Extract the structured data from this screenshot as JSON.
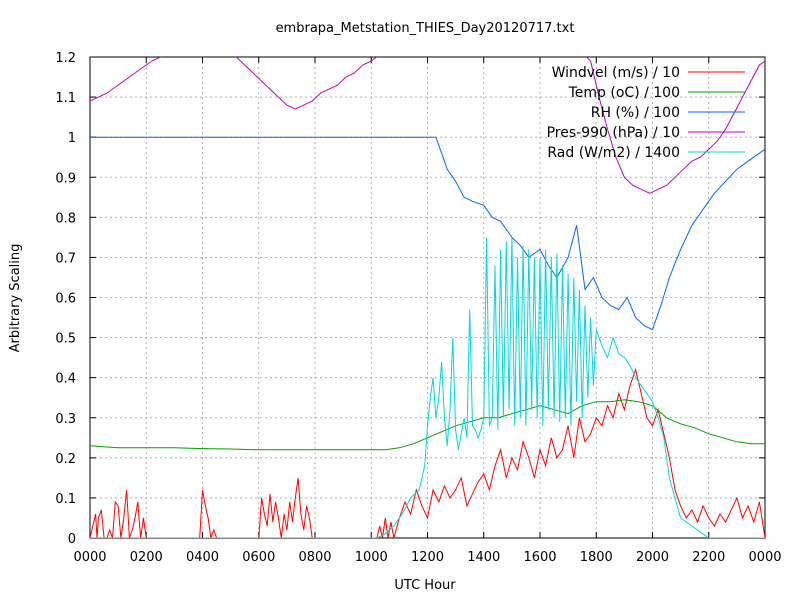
{
  "chart_data": {
    "type": "line",
    "title": "embrapa_Metstation_THIES_Day20120717.txt",
    "xlabel": "UTC Hour",
    "ylabel": "Arbitrary Scaling",
    "xlim": [
      0,
      24
    ],
    "ylim": [
      0,
      1.2
    ],
    "x_ticks": [
      {
        "value": 0,
        "label": "0000"
      },
      {
        "value": 2,
        "label": "0200"
      },
      {
        "value": 4,
        "label": "0400"
      },
      {
        "value": 6,
        "label": "0600"
      },
      {
        "value": 8,
        "label": "0800"
      },
      {
        "value": 10,
        "label": "1000"
      },
      {
        "value": 12,
        "label": "1200"
      },
      {
        "value": 14,
        "label": "1400"
      },
      {
        "value": 16,
        "label": "1600"
      },
      {
        "value": 18,
        "label": "1800"
      },
      {
        "value": 20,
        "label": "2000"
      },
      {
        "value": 22,
        "label": "2200"
      },
      {
        "value": 24,
        "label": "0000"
      }
    ],
    "y_ticks": [
      {
        "value": 0,
        "label": "0"
      },
      {
        "value": 0.1,
        "label": "0.1"
      },
      {
        "value": 0.2,
        "label": "0.2"
      },
      {
        "value": 0.3,
        "label": "0.3"
      },
      {
        "value": 0.4,
        "label": "0.4"
      },
      {
        "value": 0.5,
        "label": "0.5"
      },
      {
        "value": 0.6,
        "label": "0.6"
      },
      {
        "value": 0.7,
        "label": "0.7"
      },
      {
        "value": 0.8,
        "label": "0.8"
      },
      {
        "value": 0.9,
        "label": "0.9"
      },
      {
        "value": 1.0,
        "label": "1"
      },
      {
        "value": 1.1,
        "label": "1.1"
      },
      {
        "value": 1.2,
        "label": "1.2"
      }
    ],
    "grid": true,
    "legend_position": "top-right",
    "series": [
      {
        "name": "Windvel (m/s) / 10",
        "color": "#ff0000",
        "x": [
          0,
          0.2,
          0.25,
          0.3,
          0.4,
          0.5,
          0.6,
          0.7,
          0.8,
          0.9,
          1.0,
          1.1,
          1.2,
          1.3,
          1.4,
          1.5,
          1.6,
          1.7,
          1.8,
          1.9,
          2.0,
          2.5,
          3.0,
          3.5,
          3.9,
          4.0,
          4.1,
          4.2,
          4.3,
          4.4,
          4.5,
          5.0,
          5.5,
          6.0,
          6.1,
          6.2,
          6.3,
          6.4,
          6.5,
          6.6,
          6.7,
          6.8,
          6.9,
          7.0,
          7.1,
          7.2,
          7.3,
          7.4,
          7.5,
          7.6,
          7.7,
          7.8,
          7.9,
          8.0,
          8.1,
          8.2,
          8.3,
          8.5,
          9.0,
          9.5,
          10.0,
          10.2,
          10.3,
          10.4,
          10.5,
          10.6,
          10.7,
          10.8,
          11.0,
          11.2,
          11.4,
          11.6,
          11.8,
          12.0,
          12.2,
          12.4,
          12.6,
          12.8,
          13.0,
          13.2,
          13.4,
          13.6,
          13.8,
          14.0,
          14.2,
          14.4,
          14.6,
          14.8,
          15.0,
          15.2,
          15.4,
          15.6,
          15.8,
          16.0,
          16.2,
          16.4,
          16.6,
          16.8,
          17.0,
          17.2,
          17.4,
          17.6,
          17.8,
          18.0,
          18.2,
          18.4,
          18.6,
          18.8,
          19.0,
          19.2,
          19.4,
          19.6,
          19.8,
          20.0,
          20.2,
          20.4,
          20.6,
          20.8,
          21.0,
          21.2,
          21.4,
          21.6,
          21.8,
          22.0,
          22.2,
          22.4,
          22.6,
          22.8,
          23.0,
          23.2,
          23.4,
          23.6,
          23.8,
          24.0
        ],
        "y": [
          0,
          0.06,
          0,
          0.05,
          0.07,
          0,
          0,
          0.02,
          0,
          0.09,
          0.08,
          0,
          0.05,
          0.12,
          0,
          0.02,
          0.05,
          0.09,
          0,
          0.05,
          0,
          0,
          0,
          0,
          0,
          0.12,
          0.08,
          0.05,
          0,
          0.02,
          0,
          0,
          0,
          0,
          0.1,
          0.06,
          0.03,
          0.11,
          0.04,
          0.09,
          0.05,
          0,
          0.06,
          0.02,
          0.09,
          0.04,
          0.1,
          0.15,
          0.06,
          0.02,
          0.08,
          0.05,
          0,
          0,
          0,
          0,
          0,
          0,
          0,
          0,
          0,
          0,
          0.03,
          0,
          0.05,
          0,
          0.04,
          0,
          0.05,
          0.09,
          0.06,
          0.12,
          0.08,
          0.05,
          0.12,
          0.09,
          0.13,
          0.1,
          0.12,
          0.15,
          0.08,
          0.11,
          0.14,
          0.16,
          0.12,
          0.18,
          0.22,
          0.15,
          0.2,
          0.17,
          0.24,
          0.2,
          0.15,
          0.22,
          0.18,
          0.25,
          0.2,
          0.22,
          0.28,
          0.2,
          0.3,
          0.24,
          0.26,
          0.3,
          0.28,
          0.33,
          0.3,
          0.36,
          0.32,
          0.38,
          0.42,
          0.36,
          0.3,
          0.28,
          0.32,
          0.26,
          0.2,
          0.12,
          0.08,
          0.05,
          0.07,
          0.04,
          0.08,
          0.05,
          0.03,
          0.06,
          0.04,
          0.07,
          0.1,
          0.05,
          0.08,
          0.04,
          0.09,
          0
        ]
      },
      {
        "name": "Temp (oC) / 100",
        "color": "#00a000",
        "x": [
          0,
          1,
          2,
          3,
          4,
          5,
          6,
          7,
          8,
          9,
          10,
          10.5,
          11,
          11.5,
          12,
          12.5,
          13,
          13.5,
          14,
          14.5,
          15,
          15.5,
          16,
          16.5,
          17,
          17.5,
          18,
          18.5,
          19,
          19.5,
          20,
          20.5,
          21,
          21.5,
          22,
          22.5,
          23,
          23.5,
          24
        ],
        "y": [
          0.23,
          0.225,
          0.225,
          0.225,
          0.223,
          0.222,
          0.22,
          0.22,
          0.22,
          0.22,
          0.22,
          0.22,
          0.225,
          0.235,
          0.25,
          0.265,
          0.28,
          0.29,
          0.3,
          0.3,
          0.31,
          0.32,
          0.33,
          0.32,
          0.31,
          0.33,
          0.34,
          0.34,
          0.345,
          0.34,
          0.33,
          0.3,
          0.285,
          0.275,
          0.26,
          0.25,
          0.24,
          0.235,
          0.235
        ]
      },
      {
        "name": "RH (%) / 100",
        "color": "#0066ff",
        "x": [
          0,
          2,
          4,
          6,
          8,
          10,
          12,
          12.3,
          12.5,
          12.7,
          13.0,
          13.3,
          13.6,
          14.0,
          14.3,
          14.6,
          15.0,
          15.3,
          15.6,
          16.0,
          16.3,
          16.6,
          17.0,
          17.3,
          17.6,
          17.9,
          18.2,
          18.5,
          18.8,
          19.1,
          19.4,
          19.7,
          20.0,
          20.3,
          20.6,
          21.0,
          21.4,
          21.8,
          22.2,
          22.6,
          23.0,
          23.4,
          23.8,
          24.0
        ],
        "y": [
          1.0,
          1.0,
          1.0,
          1.0,
          1.0,
          1.0,
          1.0,
          1.0,
          0.96,
          0.92,
          0.89,
          0.85,
          0.84,
          0.83,
          0.8,
          0.79,
          0.75,
          0.73,
          0.7,
          0.72,
          0.68,
          0.65,
          0.7,
          0.78,
          0.62,
          0.65,
          0.6,
          0.58,
          0.57,
          0.6,
          0.55,
          0.53,
          0.52,
          0.58,
          0.65,
          0.72,
          0.78,
          0.82,
          0.86,
          0.89,
          0.92,
          0.94,
          0.96,
          0.97
        ]
      },
      {
        "name": "Pres-990 (hPa) / 10",
        "color": "#c000c0",
        "x": [
          0,
          0.3,
          0.6,
          1.0,
          1.4,
          1.8,
          2.2,
          2.5,
          2.8,
          3.0,
          5.0,
          5.2,
          5.5,
          5.8,
          6.1,
          6.4,
          6.7,
          7.0,
          7.3,
          7.6,
          7.9,
          8.2,
          8.5,
          8.8,
          9.1,
          9.4,
          9.7,
          10.0,
          10.2,
          10.5,
          17.5,
          17.8,
          18.1,
          18.4,
          18.7,
          19.0,
          19.3,
          19.6,
          19.9,
          20.2,
          20.5,
          20.8,
          21.1,
          21.4,
          21.7,
          22.0,
          22.3,
          22.6,
          22.9,
          23.2,
          23.5,
          23.8,
          24.0
        ],
        "y": [
          1.09,
          1.1,
          1.11,
          1.13,
          1.15,
          1.17,
          1.19,
          1.2,
          1.21,
          1.21,
          1.21,
          1.2,
          1.18,
          1.16,
          1.14,
          1.12,
          1.1,
          1.08,
          1.07,
          1.08,
          1.09,
          1.11,
          1.12,
          1.13,
          1.15,
          1.16,
          1.18,
          1.19,
          1.2,
          1.21,
          1.21,
          1.19,
          1.1,
          1.02,
          0.95,
          0.9,
          0.88,
          0.87,
          0.86,
          0.87,
          0.88,
          0.9,
          0.92,
          0.94,
          0.95,
          0.97,
          0.99,
          1.02,
          1.06,
          1.1,
          1.14,
          1.18,
          1.19
        ]
      },
      {
        "name": "Rad (W/m2) / 1400",
        "color": "#00d8e0",
        "x": [
          0,
          10.2,
          10.5,
          10.8,
          11.1,
          11.4,
          11.7,
          11.9,
          12.0,
          12.1,
          12.2,
          12.3,
          12.4,
          12.5,
          12.6,
          12.7,
          12.8,
          12.9,
          13.0,
          13.1,
          13.2,
          13.3,
          13.4,
          13.5,
          13.6,
          13.7,
          13.8,
          13.9,
          14.0,
          14.1,
          14.2,
          14.3,
          14.4,
          14.5,
          14.6,
          14.7,
          14.8,
          14.9,
          15.0,
          15.1,
          15.2,
          15.3,
          15.4,
          15.5,
          15.6,
          15.7,
          15.8,
          15.9,
          16.0,
          16.1,
          16.2,
          16.3,
          16.4,
          16.5,
          16.6,
          16.7,
          16.8,
          16.9,
          17.0,
          17.1,
          17.2,
          17.3,
          17.4,
          17.5,
          17.6,
          17.7,
          17.8,
          17.9,
          18.0,
          18.2,
          18.4,
          18.6,
          18.8,
          19.0,
          19.2,
          19.4,
          19.6,
          19.8,
          20.0,
          20.2,
          20.4,
          20.6,
          21.0,
          22.0,
          24.0
        ],
        "y": [
          0,
          0,
          0.01,
          0.03,
          0.06,
          0.1,
          0.12,
          0.18,
          0.28,
          0.35,
          0.4,
          0.3,
          0.35,
          0.44,
          0.3,
          0.23,
          0.32,
          0.5,
          0.27,
          0.22,
          0.26,
          0.3,
          0.25,
          0.57,
          0.28,
          0.27,
          0.25,
          0.27,
          0.3,
          0.75,
          0.28,
          0.3,
          0.68,
          0.27,
          0.72,
          0.3,
          0.74,
          0.32,
          0.75,
          0.28,
          0.7,
          0.3,
          0.73,
          0.28,
          0.72,
          0.32,
          0.7,
          0.3,
          0.7,
          0.28,
          0.72,
          0.32,
          0.7,
          0.3,
          0.71,
          0.29,
          0.68,
          0.3,
          0.66,
          0.28,
          0.65,
          0.34,
          0.62,
          0.3,
          0.58,
          0.35,
          0.55,
          0.38,
          0.52,
          0.48,
          0.45,
          0.5,
          0.46,
          0.45,
          0.43,
          0.4,
          0.38,
          0.36,
          0.34,
          0.3,
          0.25,
          0.15,
          0.05,
          0,
          0
        ]
      }
    ]
  }
}
